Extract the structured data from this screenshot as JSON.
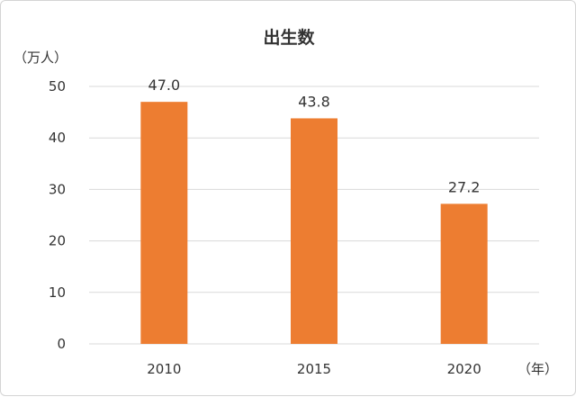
{
  "chart_data": {
    "type": "bar",
    "title": "出生数",
    "ylabel": "（万人）",
    "xlabel": "（年）",
    "categories": [
      "2010",
      "2015",
      "2020"
    ],
    "values": [
      47.0,
      43.8,
      27.2
    ],
    "data_labels": [
      "47.0",
      "43.8",
      "27.2"
    ],
    "ylim": [
      0,
      50
    ],
    "yticks": [
      0,
      10,
      20,
      30,
      40,
      50
    ],
    "grid": true,
    "bar_color": "#ed7d31",
    "grid_color": "#d9d9d9"
  }
}
